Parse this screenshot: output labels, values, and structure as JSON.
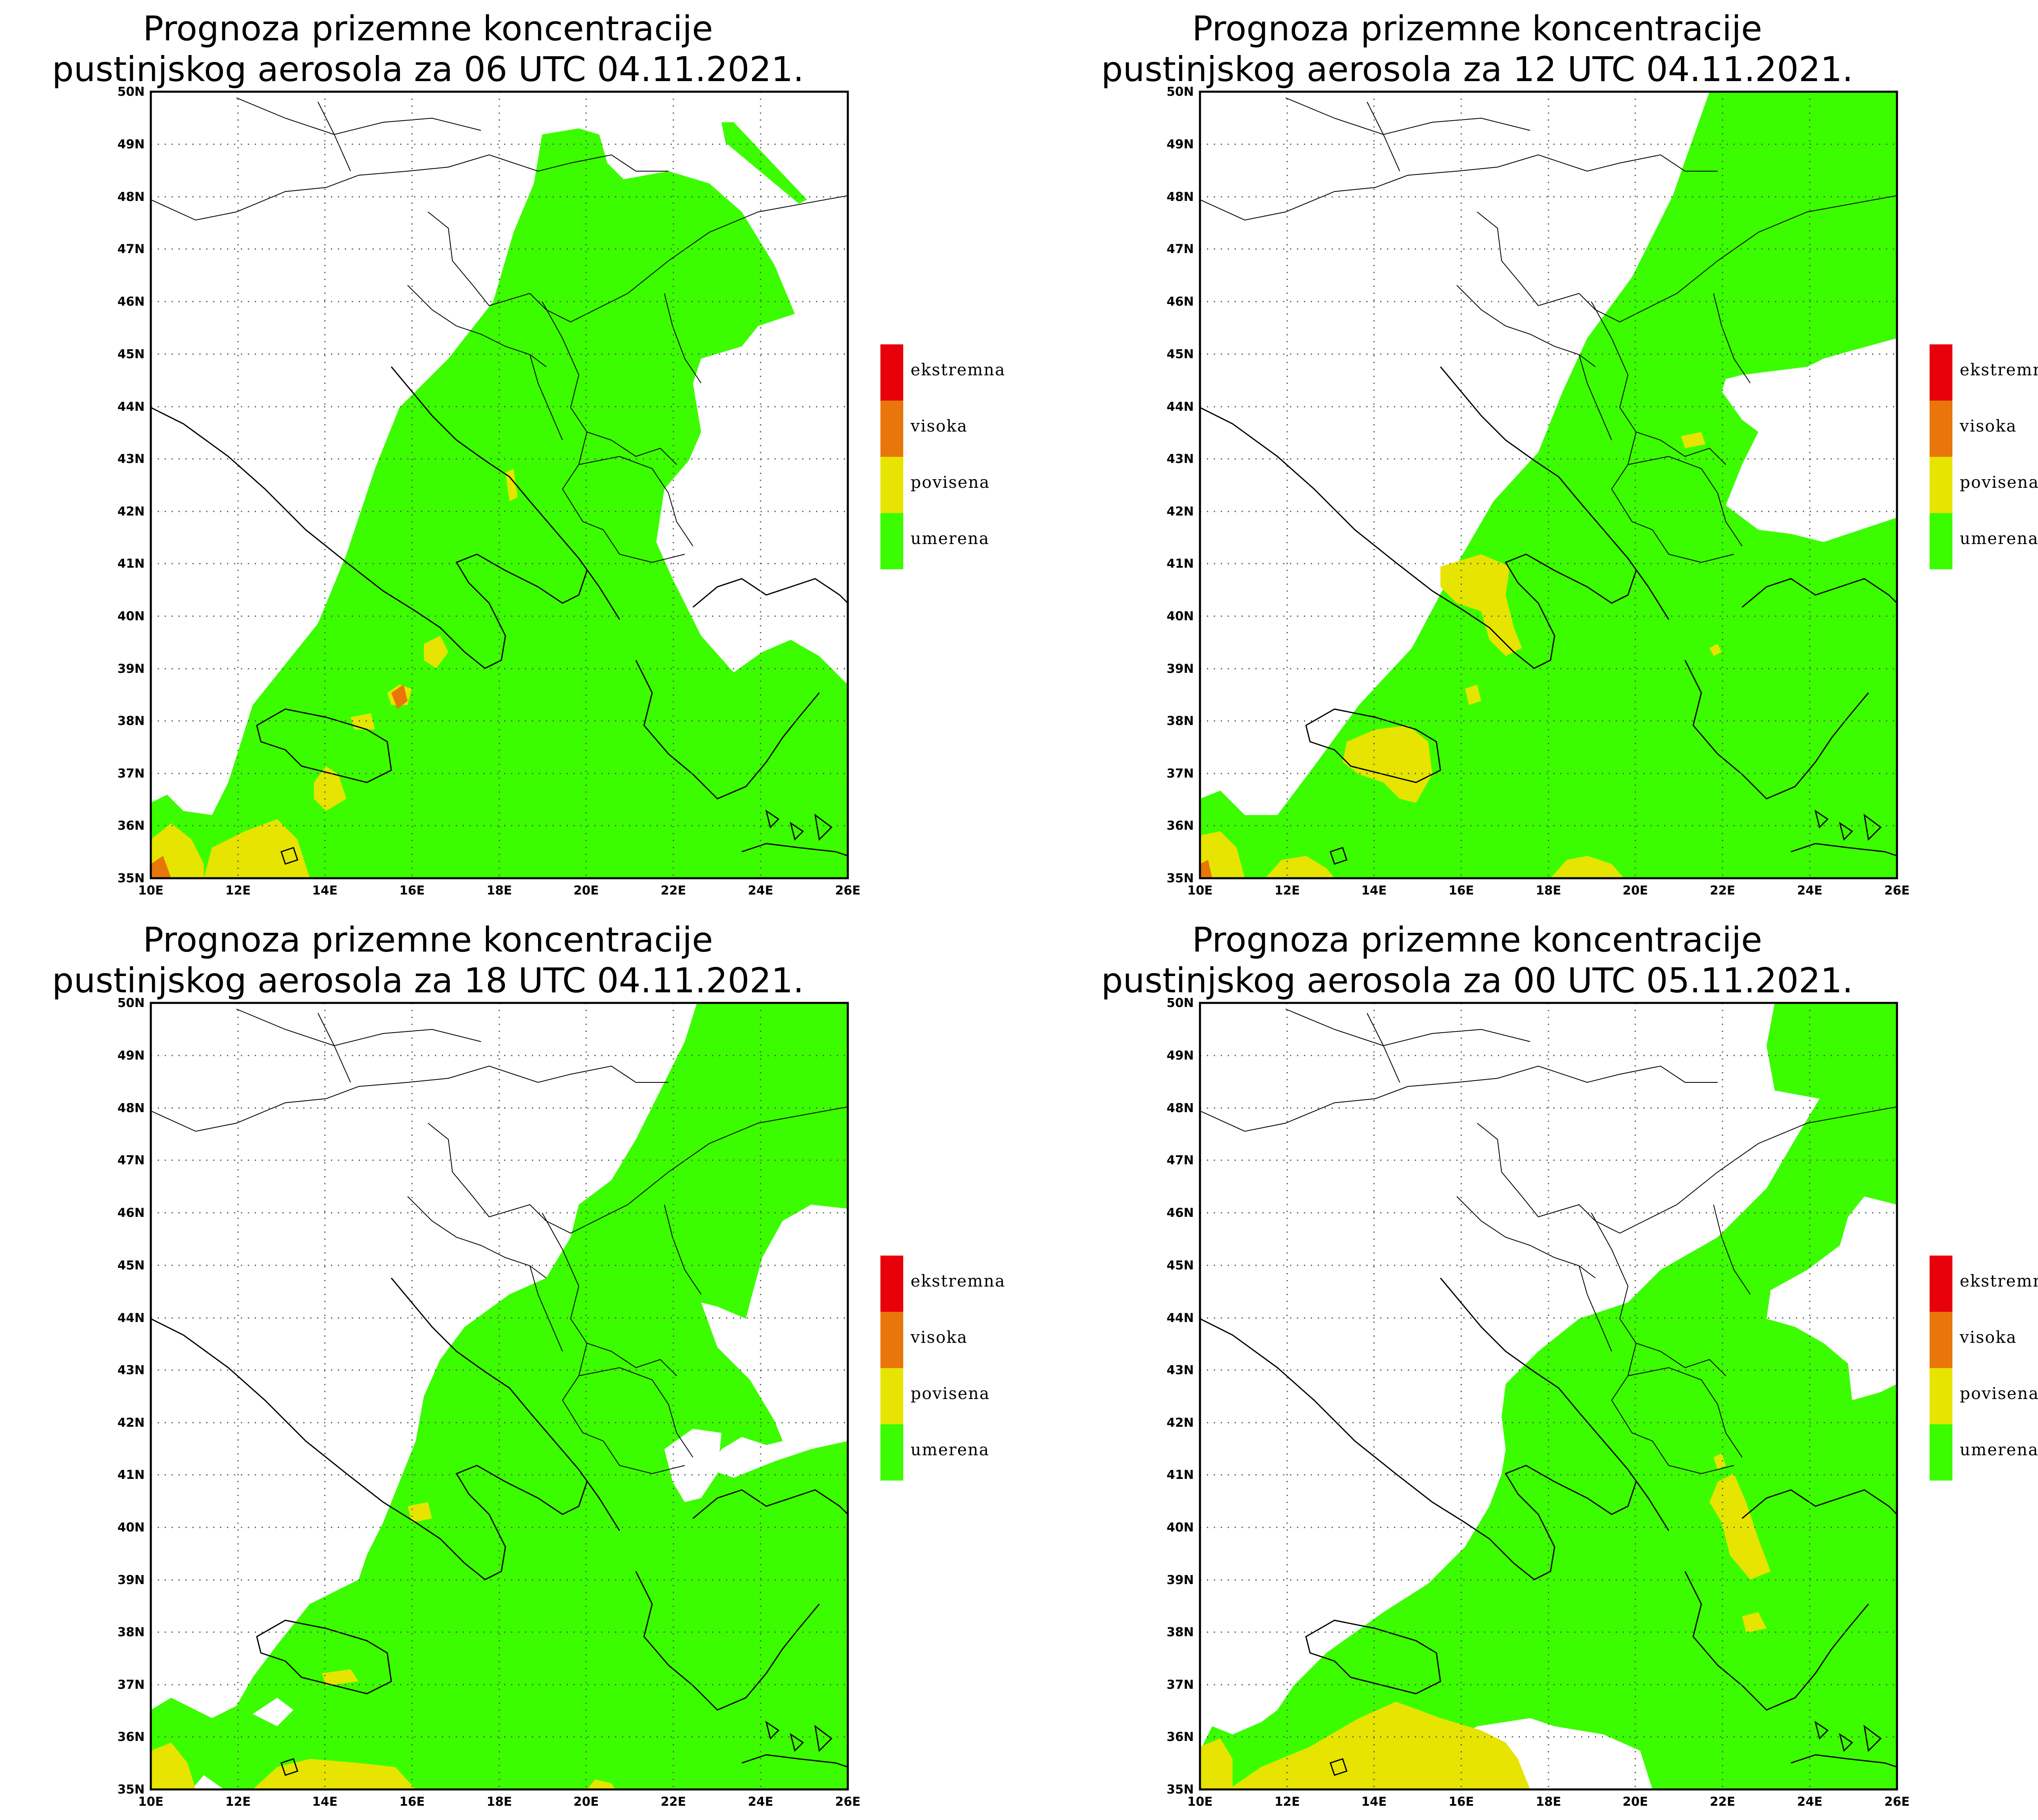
{
  "maps": [
    {
      "title_line1": "Prognoza prizemne koncentracije",
      "title_line2": "pustinjskog aerosola za 06 UTC 04.11.2021."
    },
    {
      "title_line1": "Prognoza prizemne koncentracije",
      "title_line2": "pustinjskog aerosola za 12 UTC 04.11.2021."
    },
    {
      "title_line1": "Prognoza prizemne koncentracije",
      "title_line2": "pustinjskog aerosola za 18 UTC 04.11.2021."
    },
    {
      "title_line1": "Prognoza prizemne koncentracije",
      "title_line2": "pustinjskog aerosola za 00 UTC 05.11.2021."
    }
  ],
  "legend": [
    {
      "label": "ekstremna",
      "color": "#e8000b"
    },
    {
      "label": "visoka",
      "color": "#e8760a"
    },
    {
      "label": "povisena",
      "color": "#e6e400"
    },
    {
      "label": "umerena",
      "color": "#3cfc00"
    }
  ],
  "lat_labels": [
    "50N",
    "49N",
    "48N",
    "47N",
    "46N",
    "45N",
    "44N",
    "43N",
    "42N",
    "41N",
    "40N",
    "39N",
    "38N",
    "37N",
    "36N",
    "35N"
  ],
  "lon_labels": [
    "10E",
    "12E",
    "14E",
    "16E",
    "18E",
    "20E",
    "22E",
    "24E",
    "26E"
  ],
  "colors": {
    "umerena": "#3cfc00",
    "povisena": "#e6e400",
    "visoka": "#e8760a",
    "ekstremna": "#e8000b",
    "border": "#000000",
    "grid": "#555555"
  }
}
